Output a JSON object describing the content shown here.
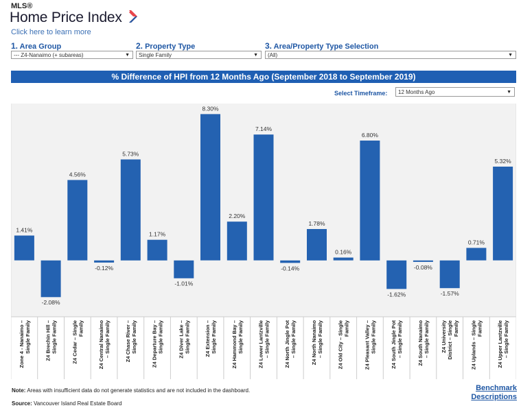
{
  "header": {
    "mls": "MLS®",
    "brand_title": "Home Price Index",
    "learn_link": "Click here to learn more"
  },
  "filters": {
    "area_group": {
      "num": "1.",
      "label": "Area Group",
      "value": "--- Z4-Nanaimo (+ subareas)"
    },
    "property_type": {
      "num": "2.",
      "label": "Property Type",
      "value": "Single Family"
    },
    "area_property": {
      "num": "3.",
      "label": "Area/Property Type Selection",
      "value": "(All)"
    }
  },
  "timeframe": {
    "label": "Select Timeframe:",
    "value": "12 Months Ago"
  },
  "footer": {
    "note_label": "Note:",
    "note_text": " Areas with insufficient data do not generate statistics and are not included in the dashboard.",
    "source_label": "Source:",
    "source_text": " Vancouver Island Real Estate Board",
    "bench_line1": "Benchmark",
    "bench_line2": "Descriptions"
  },
  "colors": {
    "bar": "#2462b1",
    "title_bar": "#1f5fb3",
    "plot_bg": "#f2f2f2",
    "accent": "#1f57a4"
  },
  "chart_data": {
    "type": "bar",
    "title": "% Difference of HPI from 12 Months Ago (September 2018 to September 2019)",
    "categories": [
      [
        "Zone 4 - Nanaimo –",
        "Single Family"
      ],
      [
        "Z4 Brechin Hill –",
        "Single Family"
      ],
      [
        "Z4 Cedar – Single",
        "Family"
      ],
      [
        "Z4 Central Nanaimo",
        "– Single Family"
      ],
      [
        "Z4 Chase River –",
        "Single Family"
      ],
      [
        "Z4 Departure Bay –",
        "Single Family"
      ],
      [
        "Z4 Diver Lake –",
        "Single Family"
      ],
      [
        "Z4 Extension –",
        "Single Family"
      ],
      [
        "Z4 Hammond Bay –",
        "Single Family"
      ],
      [
        "Z4 Lower Lantzville",
        "– Single Family"
      ],
      [
        "Z4 North Jingle Pot",
        "– Single Family"
      ],
      [
        "Z4 North Nanaimo",
        "– Single Family"
      ],
      [
        "Z4 Old City – Single",
        "Family"
      ],
      [
        "Z4 Pleasant Valley –",
        "Single Family"
      ],
      [
        "Z4 South Jingle Pot",
        "– Single Family"
      ],
      [
        "Z4 South Nanaimo",
        "– Single Family"
      ],
      [
        "Z4 University",
        "District – Single",
        "Family"
      ],
      [
        "Z4 Uplands – Single",
        "Family"
      ],
      [
        "Z4 Upper Lantzville",
        "– Single Family"
      ]
    ],
    "values": [
      1.41,
      -2.08,
      4.56,
      -0.12,
      5.73,
      1.17,
      -1.01,
      8.3,
      2.2,
      7.14,
      -0.14,
      1.78,
      0.16,
      6.8,
      -1.62,
      -0.08,
      -1.57,
      0.71,
      5.32
    ],
    "labels": [
      "1.41%",
      "-2.08%",
      "4.56%",
      "-0.12%",
      "5.73%",
      "1.17%",
      "-1.01%",
      "8.30%",
      "2.20%",
      "7.14%",
      "-0.14%",
      "1.78%",
      "0.16%",
      "6.80%",
      "-1.62%",
      "-0.08%",
      "-1.57%",
      "0.71%",
      "5.32%"
    ],
    "ylim": [
      -3.2,
      8.9
    ],
    "grid": false
  }
}
